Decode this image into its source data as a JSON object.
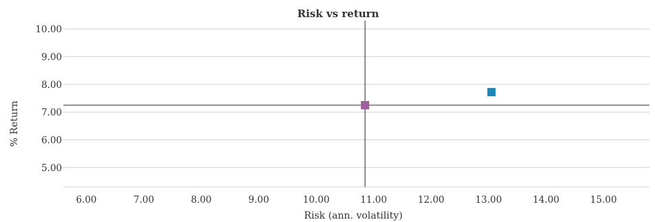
{
  "chart_data": {
    "type": "scatter",
    "title": "Risk vs return",
    "xlabel": "Risk (ann. volatility)",
    "ylabel": "% Return",
    "xlim": [
      5.6,
      15.8
    ],
    "ylim": [
      4.3,
      10.3
    ],
    "x_ticks": [
      "6.00",
      "7.00",
      "8.00",
      "9.00",
      "10.00",
      "11.00",
      "12.00",
      "13.00",
      "14.00",
      "15.00"
    ],
    "y_ticks": [
      "10.00",
      "9.00",
      "8.00",
      "7.00",
      "6.00",
      "5.00"
    ],
    "grid": "horizontal",
    "reference_lines": {
      "x": 10.85,
      "y": 7.25
    },
    "points": [
      {
        "x": 10.85,
        "y": 7.25,
        "color": "#a0609e"
      },
      {
        "x": 13.05,
        "y": 7.72,
        "color": "#1b87b7"
      }
    ]
  }
}
